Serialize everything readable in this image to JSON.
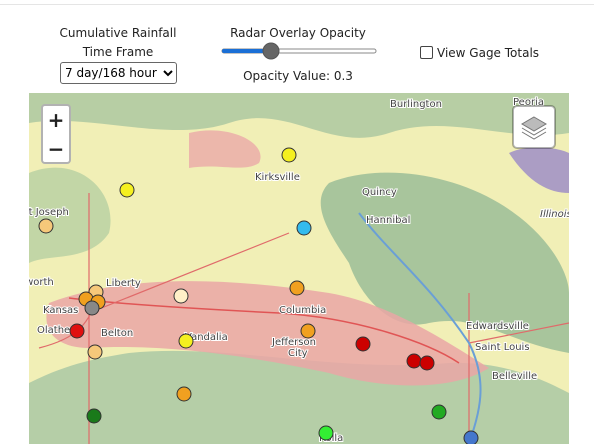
{
  "controls": {
    "timeframe_label_1": "Cumulative Rainfall",
    "timeframe_label_2": "Time Frame",
    "timeframe_value": "7 day/168 hour",
    "opacity_label": "Radar Overlay Opacity",
    "opacity_value": "Opacity Value: 0.3",
    "gage_totals": "View Gage Totals"
  },
  "map": {
    "zoom_in": "+",
    "zoom_out": "−",
    "labels": [
      "Burlington",
      "Peoria",
      "Kirksville",
      "Quincy",
      "Saint Joseph",
      "Hannibal",
      "Illinois",
      "Liberty",
      "Leavenworth",
      "Kansas",
      "Columbia",
      "Olathe",
      "Belton",
      "Vandalia",
      "Jefferson",
      "City",
      "Edwardsville",
      "Saint Louis",
      "Belleville",
      "Rolla"
    ]
  }
}
